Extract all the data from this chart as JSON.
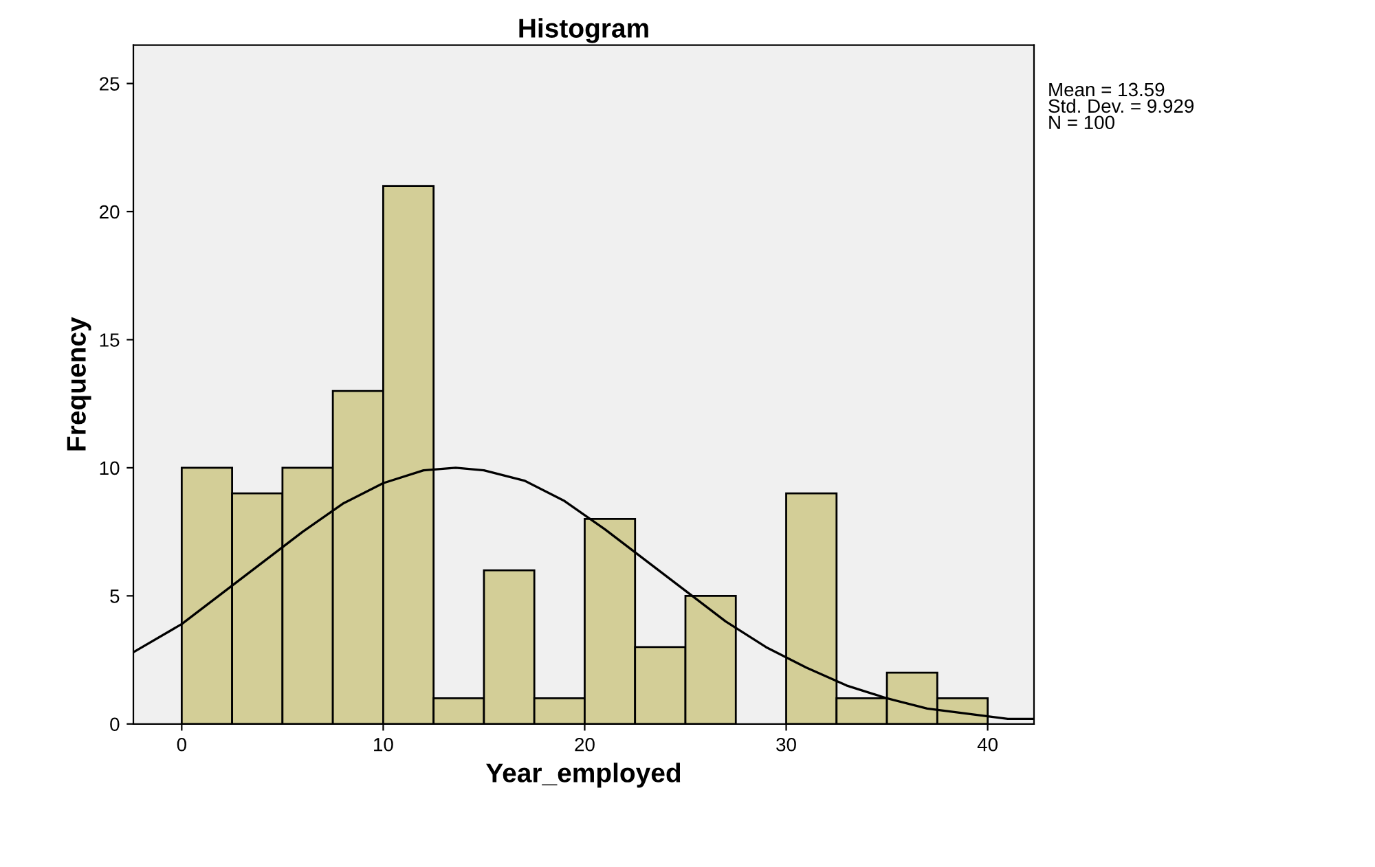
{
  "chart_data": {
    "type": "histogram",
    "title": "Histogram",
    "xlabel": "Year_employed",
    "ylabel": "Frequency",
    "bins": [
      0,
      2.5,
      5,
      7.5,
      10,
      12.5,
      15,
      17.5,
      20,
      22.5,
      25,
      27.5,
      30,
      32.5,
      35,
      37.5,
      40
    ],
    "values": [
      10,
      9,
      10,
      13,
      21,
      1,
      6,
      1,
      8,
      3,
      5,
      0,
      9,
      1,
      2,
      1
    ],
    "color": "#d3ce97",
    "series": [
      {
        "type": "line",
        "color": "#000000",
        "x": [
          -2.4,
          0,
          2,
          4,
          6,
          8,
          10,
          12,
          13.6,
          15,
          17,
          19,
          21,
          23,
          25,
          27,
          29,
          31,
          33,
          35,
          37,
          39,
          41,
          42.3
        ],
        "values": [
          2.8,
          3.9,
          5.1,
          6.3,
          7.5,
          8.6,
          9.4,
          9.9,
          10,
          9.9,
          9.5,
          8.7,
          7.6,
          6.4,
          5.2,
          4,
          3,
          2.2,
          1.5,
          1,
          0.6,
          0.4,
          0.2,
          0.2
        ]
      }
    ],
    "xlim": [
      -2.4,
      42.3
    ],
    "xticks": [
      0,
      10,
      20,
      30,
      40
    ],
    "ylim": [
      0,
      26.5
    ],
    "yticks": [
      0,
      5,
      10,
      15,
      20,
      25
    ],
    "grid": false,
    "legend": false,
    "annotations": [
      "Mean = 13.59\nStd. Dev. = 9.929\nN = 100"
    ]
  }
}
